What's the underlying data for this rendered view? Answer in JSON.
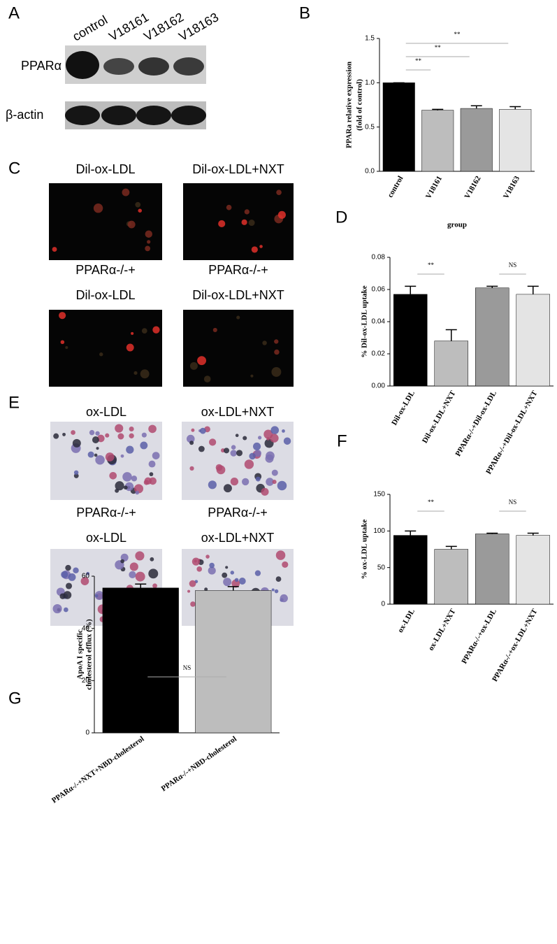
{
  "panel_labels": [
    "A",
    "B",
    "C",
    "D",
    "E",
    "F",
    "G"
  ],
  "blot": {
    "columns": [
      "control",
      "V18161",
      "V18162",
      "V18163"
    ],
    "rows": [
      "PPARα",
      "β-actin"
    ]
  },
  "micrographs_c": {
    "labels": [
      [
        "Dil-ox-LDL"
      ],
      [
        "Dil-ox-LDL+NXT"
      ],
      [
        "PPARα-/-+",
        "Dil-ox-LDL"
      ],
      [
        "PPARα-/-+",
        "Dil-ox-LDL+NXT"
      ]
    ]
  },
  "micrographs_e": {
    "labels": [
      [
        "ox-LDL"
      ],
      [
        "ox-LDL+NXT"
      ],
      [
        "PPARα-/-+",
        "ox-LDL"
      ],
      [
        "PPARα-/-+",
        "ox-LDL+NXT"
      ]
    ]
  },
  "chart_data": [
    {
      "type": "bar",
      "ylabel": [
        "PPARa relative expression",
        "(fold of control)"
      ],
      "xlabel": "group",
      "categories": [
        "control",
        "V18161",
        "V18162",
        "V18163"
      ],
      "values": [
        1.0,
        0.69,
        0.71,
        0.7
      ],
      "errors": [
        0,
        0.01,
        0.03,
        0.03
      ],
      "colors": [
        "#000000",
        "#bdbdbd",
        "#9a9a9a",
        "#e4e4e4"
      ],
      "ylim": [
        0,
        1.5
      ],
      "yticks": [
        {
          "value": 0,
          "label": "0.0"
        },
        0.5,
        {
          "value": 1,
          "label": "1.0"
        },
        1.5
      ],
      "annotations": [
        "**",
        "**",
        "**"
      ]
    },
    {
      "type": "bar",
      "ylabel": [
        "% Dil-ox-LDL uptake"
      ],
      "categories": [
        "Dil-ox-LDL",
        "Dil-ox-LDL+NXT",
        "PPARα-/-+Dil-ox-LDL",
        "PPARα-/-+Dil-ox-LDL+NXT"
      ],
      "values": [
        0.057,
        0.028,
        0.061,
        0.057
      ],
      "errors": [
        0.005,
        0.007,
        0.001,
        0.005
      ],
      "colors": [
        "#000000",
        "#bdbdbd",
        "#9a9a9a",
        "#e4e4e4"
      ],
      "ylim": [
        0,
        0.08
      ],
      "yticks": [
        {
          "value": 0,
          "label": "0.00"
        },
        0.02,
        0.04,
        0.06,
        {
          "value": 0.08,
          "label": "0.08"
        }
      ],
      "annotations": [
        "**",
        "NS"
      ]
    },
    {
      "type": "bar",
      "ylabel": [
        "% ox-LDL uptake"
      ],
      "categories": [
        "ox-LDL",
        "ox-LDL+NXT",
        "PPARα-/-+ox-LDL",
        "PPARα-/-+ox-LDL+NXT"
      ],
      "values": [
        94,
        75,
        96,
        94
      ],
      "errors": [
        6,
        4,
        1,
        3
      ],
      "colors": [
        "#000000",
        "#bdbdbd",
        "#9a9a9a",
        "#e4e4e4"
      ],
      "ylim": [
        0,
        150
      ],
      "yticks": [
        0,
        50,
        100,
        150
      ],
      "annotations": [
        "**",
        "NS"
      ]
    },
    {
      "type": "bar",
      "ylabel": [
        "ApoA I specific",
        "cholesterol efflux (%)"
      ],
      "categories": [
        "PPARα-/-+NXT+NBD-cholesterol",
        "PPARα-/-+NBD-cholesterol"
      ],
      "values": [
        55.5,
        54.5
      ],
      "errors": [
        1.5,
        1.5
      ],
      "colors": [
        "#000000",
        "#bdbdbd"
      ],
      "ylim": [
        0,
        60
      ],
      "yticks": [
        0,
        20,
        40,
        60
      ],
      "annotations": [
        "NS"
      ]
    }
  ]
}
